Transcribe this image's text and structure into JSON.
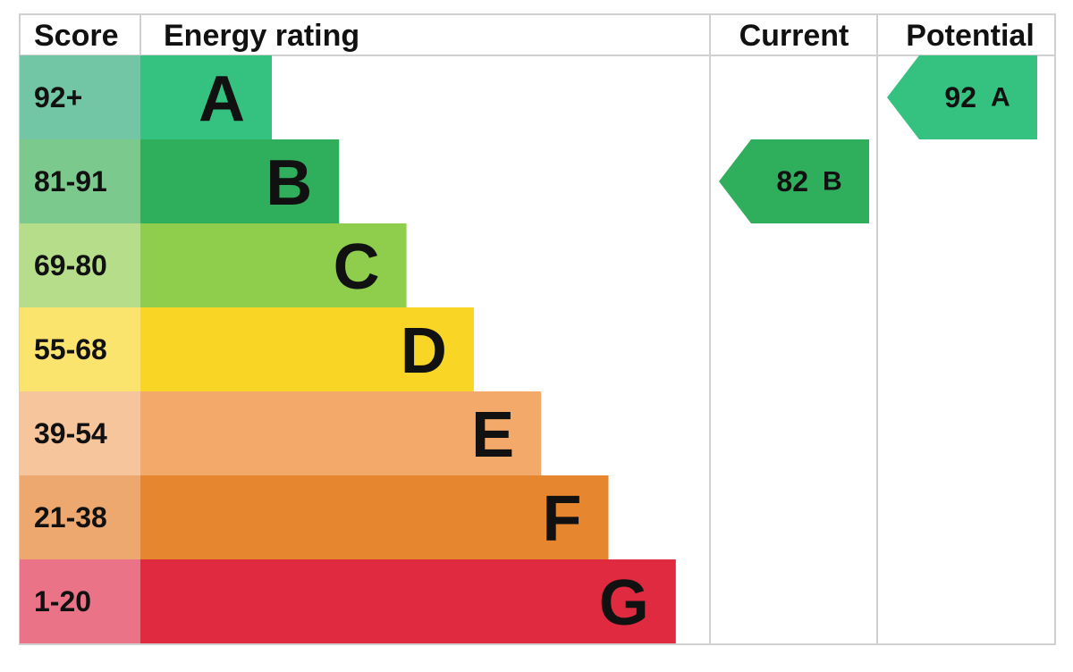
{
  "header": {
    "score": "Score",
    "rating": "Energy rating",
    "current": "Current",
    "potential": "Potential"
  },
  "bands": [
    {
      "score": "92+",
      "letter": "A",
      "color": "#35c281",
      "score_color": "#72c6a5"
    },
    {
      "score": "81-91",
      "letter": "B",
      "color": "#2fae5c",
      "score_color": "#7bc98d"
    },
    {
      "score": "69-80",
      "letter": "C",
      "color": "#8fce4c",
      "score_color": "#b5dd8a"
    },
    {
      "score": "55-68",
      "letter": "D",
      "color": "#f9d526",
      "score_color": "#fae46e"
    },
    {
      "score": "39-54",
      "letter": "E",
      "color": "#f3a96a",
      "score_color": "#f6c59b"
    },
    {
      "score": "21-38",
      "letter": "F",
      "color": "#e6862f",
      "score_color": "#eca86e"
    },
    {
      "score": "1-20",
      "letter": "G",
      "color": "#e02a3f",
      "score_color": "#ea7388"
    }
  ],
  "current": {
    "value": 82,
    "letter": "B"
  },
  "potential": {
    "value": 92,
    "letter": "A"
  }
}
